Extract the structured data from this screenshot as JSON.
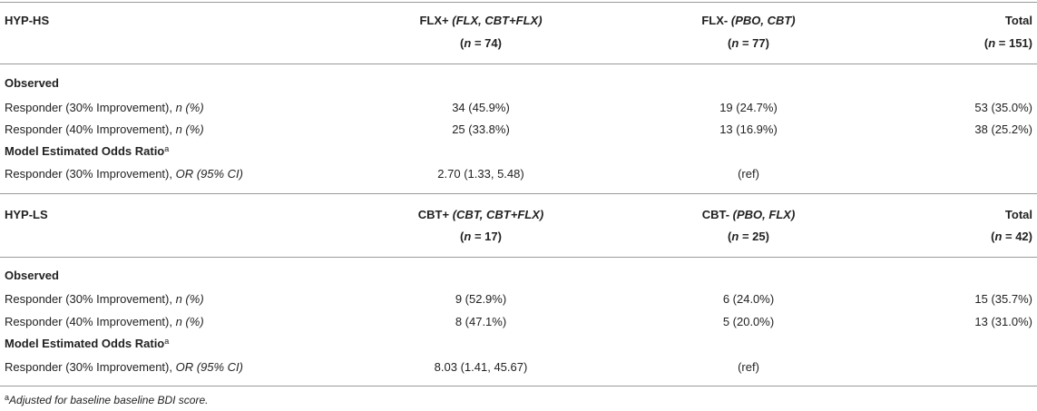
{
  "hs": {
    "label": "HYP-HS",
    "col1": {
      "main": "FLX+",
      "italic": "(FLX, CBT+FLX)",
      "n_prefix": "(",
      "n_var": "n",
      "n_value": " = 74)"
    },
    "col2": {
      "main": "FLX-",
      "italic": "(PBO, CBT)",
      "n_prefix": "(",
      "n_var": "n",
      "n_value": " = 77)"
    },
    "col3": {
      "main": "Total",
      "n_prefix": "(",
      "n_var": "n",
      "n_value": " = 151)"
    },
    "observed": "Observed",
    "rows": [
      {
        "label": "Responder (30% Improvement), ",
        "label_italic": "n (%)",
        "v1": "34 (45.9%)",
        "v2": "19 (24.7%)",
        "v3": "53 (35.0%)"
      },
      {
        "label": "Responder (40% Improvement), ",
        "label_italic": "n (%)",
        "v1": "25 (33.8%)",
        "v2": "13 (16.9%)",
        "v3": "38 (25.2%)"
      }
    ],
    "model": "Model Estimated Odds Ratio",
    "model_sup": "a",
    "or_row": {
      "label": "Responder (30% Improvement), ",
      "label_italic": "OR (95% CI)",
      "v1": "2.70 (1.33, 5.48)",
      "v2": "(ref)",
      "v3": ""
    }
  },
  "ls": {
    "label": "HYP-LS",
    "col1": {
      "main": "CBT+",
      "italic": "(CBT, CBT+FLX)",
      "n_prefix": "(",
      "n_var": "n",
      "n_value": " = 17)"
    },
    "col2": {
      "main": "CBT-",
      "italic": "(PBO, FLX)",
      "n_prefix": "(",
      "n_var": "n",
      "n_value": " = 25)"
    },
    "col3": {
      "main": "Total",
      "n_prefix": "(",
      "n_var": "n",
      "n_value": " = 42)"
    },
    "observed": "Observed",
    "rows": [
      {
        "label": "Responder (30% Improvement), ",
        "label_italic": "n (%)",
        "v1": "9 (52.9%)",
        "v2": "6 (24.0%)",
        "v3": "15 (35.7%)"
      },
      {
        "label": "Responder (40% Improvement), ",
        "label_italic": "n (%)",
        "v1": "8 (47.1%)",
        "v2": "5 (20.0%)",
        "v3": "13 (31.0%)"
      }
    ],
    "model": "Model Estimated Odds Ratio",
    "model_sup": "a",
    "or_row": {
      "label": "Responder (30% Improvement), ",
      "label_italic": "OR (95% CI)",
      "v1": "8.03 (1.41, 45.67)",
      "v2": "(ref)",
      "v3": ""
    }
  },
  "footnote": {
    "sup": "a",
    "text": "Adjusted for baseline baseline BDI score."
  }
}
